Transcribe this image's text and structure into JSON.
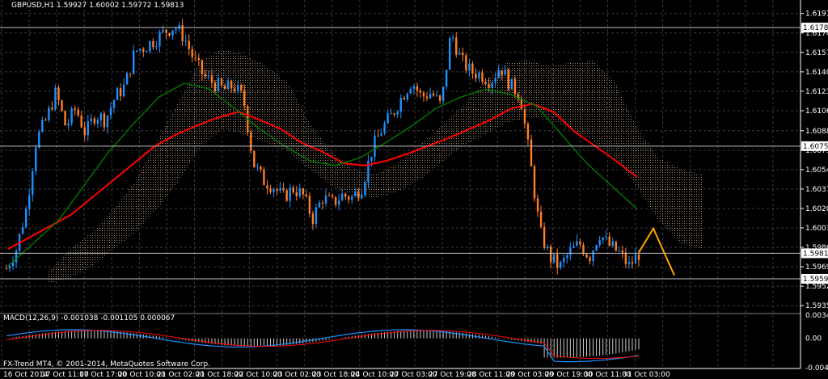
{
  "header": {
    "symbol_line": "GBPUSD,H1  1.59927 1.60002 1.59772 1.59813",
    "macd_label": "MACD(12,26,9) -0.001038 -0.001105 0.000067",
    "copyright": "FX-Trend MT4, © 2001-2014, MetaQuotes Software Corp."
  },
  "colors": {
    "background": "#000000",
    "grid": "#3a3a3a",
    "bull": "#1e90ff",
    "bear": "#ff7f27",
    "ma_red": "#ff0000",
    "ma_green": "#008000",
    "cloud": "#d2b48c",
    "projection": "#ffa500"
  },
  "chart_data": {
    "type": "candlestick",
    "symbol": "GBPUSD",
    "timeframe": "H1",
    "last_ohlc": {
      "open": 1.59927,
      "high": 1.60002,
      "low": 1.59772,
      "close": 1.59813
    },
    "y_ticks": [
      "1.61910",
      "1.61740",
      "1.61570",
      "1.61400",
      "1.61230",
      "1.61060",
      "1.60885",
      "1.60715",
      "1.60545",
      "1.60375",
      "1.60205",
      "1.60035",
      "1.59865",
      "1.59695",
      "1.59525",
      "1.59355"
    ],
    "price_markers": [
      "1.61787",
      "1.60750",
      "1.59813",
      "1.59590"
    ],
    "x_ticks": [
      "16 Oct 2014",
      "17 Oct 11:00",
      "17 Oct 17:00",
      "20 Oct 10:00",
      "21 Oct 02:00",
      "21 Oct 18:00",
      "22 Oct 10:00",
      "23 Oct 02:00",
      "23 Oct 18:00",
      "24 Oct 10:00",
      "27 Oct 03:00",
      "27 Oct 19:00",
      "28 Oct 11:00",
      "29 Oct 03:00",
      "29 Oct 19:00",
      "30 Oct 11:00",
      "31 Oct 03:00"
    ],
    "ylim": [
      1.593,
      1.62
    ],
    "close_path": [
      1.5968,
      1.5985,
      1.602,
      1.608,
      1.6098,
      1.6122,
      1.6092,
      1.6108,
      1.6086,
      1.6103,
      1.6098,
      1.6118,
      1.6128,
      1.6158,
      1.6162,
      1.6168,
      1.6175,
      1.618,
      1.617,
      1.615,
      1.6136,
      1.613,
      1.6124,
      1.6128,
      1.6116,
      1.606,
      1.6045,
      1.604,
      1.603,
      1.6038,
      1.6032,
      1.6012,
      1.603,
      1.6025,
      1.6032,
      1.603,
      1.604,
      1.6072,
      1.609,
      1.6102,
      1.6118,
      1.6132,
      1.6118,
      1.6122,
      1.611,
      1.6175,
      1.615,
      1.614,
      1.6138,
      1.6132,
      1.6145,
      1.6128,
      1.612,
      1.6062,
      1.6,
      1.5978,
      1.5969,
      1.5982,
      1.599,
      1.5978,
      1.5999,
      1.5988,
      1.5982,
      1.597,
      1.5981
    ],
    "ma_red": [
      1.5985,
      1.5995,
      1.6005,
      1.6015,
      1.603,
      1.6045,
      1.606,
      1.6075,
      1.6085,
      1.6093,
      1.61,
      1.6105,
      1.6098,
      1.609,
      1.6078,
      1.607,
      1.606,
      1.6058,
      1.6062,
      1.6068,
      1.6075,
      1.6082,
      1.609,
      1.6098,
      1.6108,
      1.6112,
      1.6105,
      1.6088,
      1.6075,
      1.6062,
      1.6048
    ],
    "ma_green": [
      1.597,
      1.599,
      1.601,
      1.604,
      1.607,
      1.6095,
      1.6118,
      1.613,
      1.6125,
      1.6108,
      1.609,
      1.6075,
      1.6062,
      1.6058,
      1.6065,
      1.6078,
      1.6092,
      1.6108,
      1.6118,
      1.6125,
      1.612,
      1.611,
      1.6085,
      1.606,
      1.604,
      1.602
    ],
    "macd_ylim": [
      -0.00439,
      0.00348
    ],
    "macd_ticks": [
      "0.003486",
      "0.00",
      "-0.00439"
    ]
  }
}
